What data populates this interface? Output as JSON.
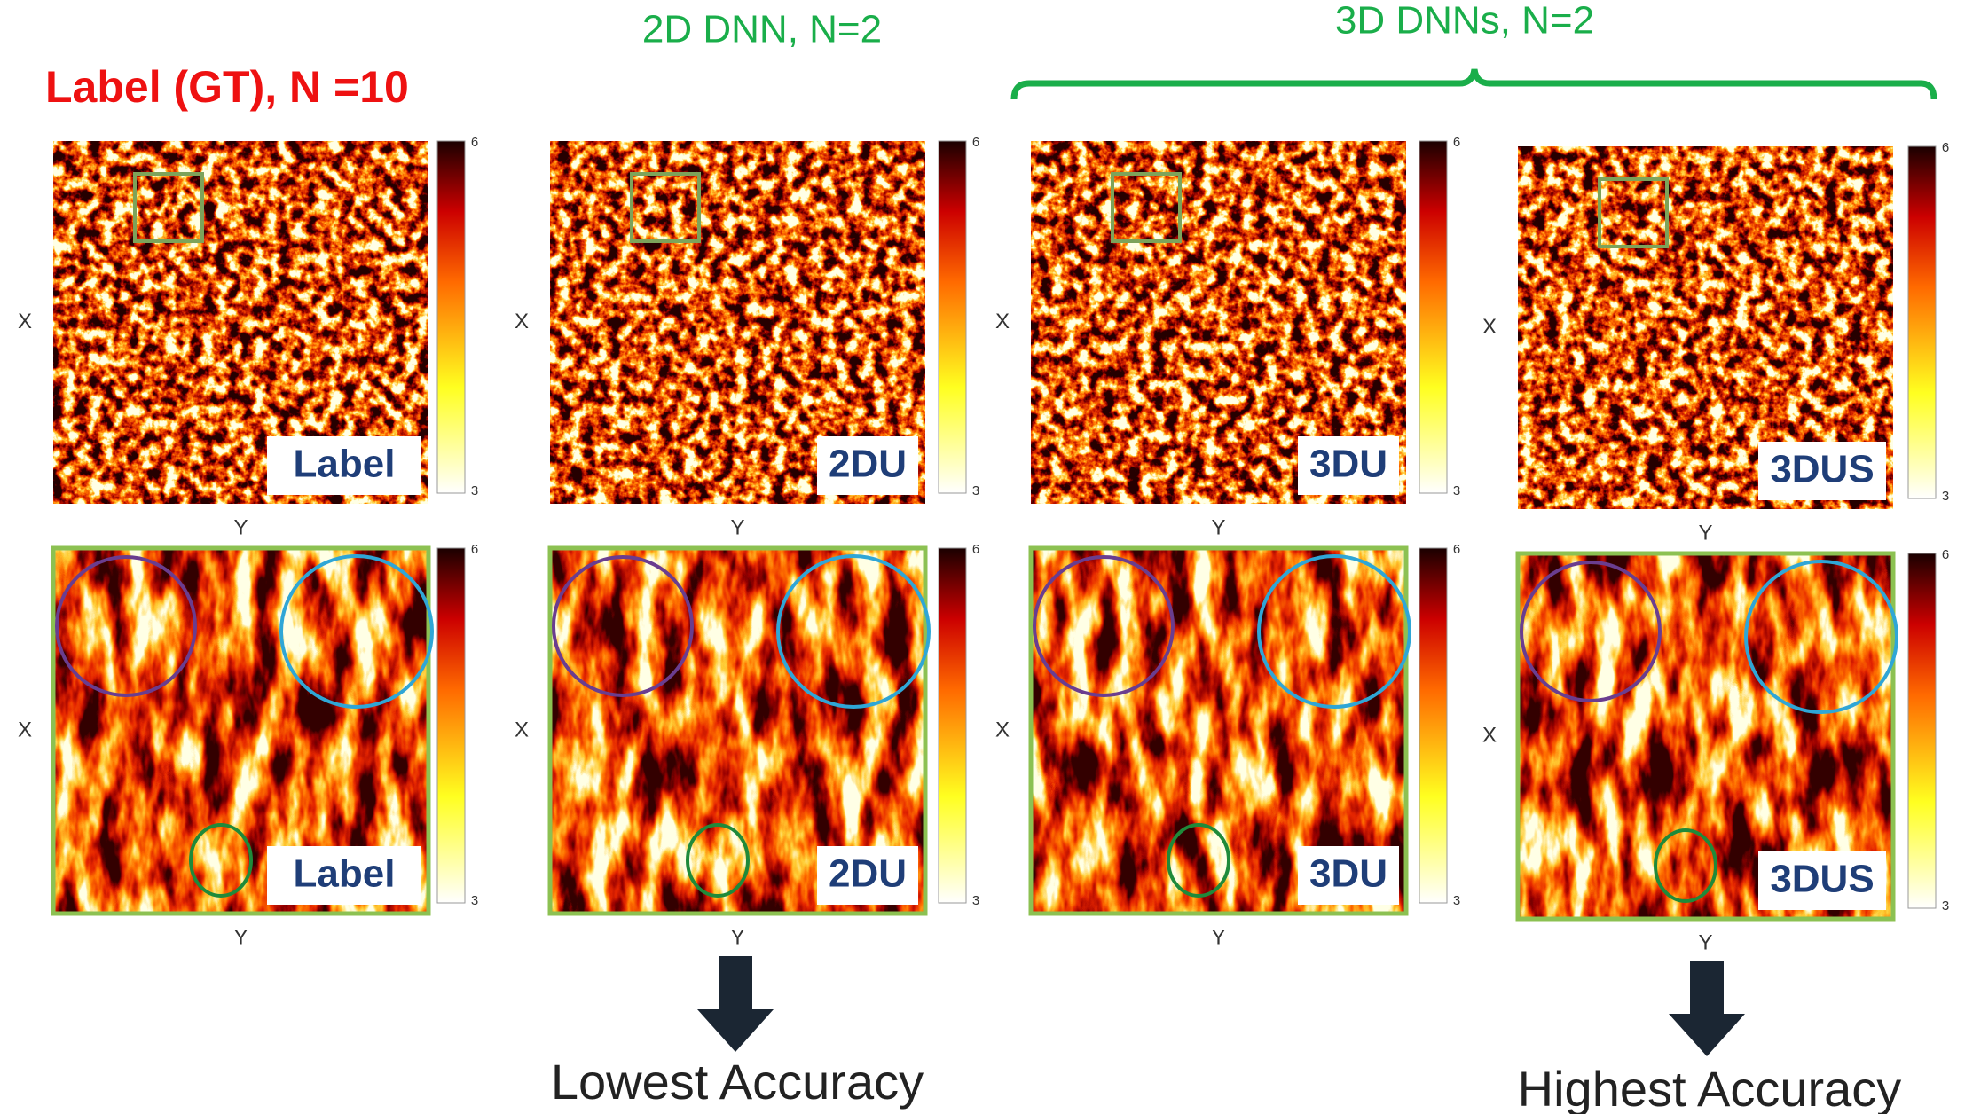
{
  "titles": {
    "label_gt": "Label (GT), N =10",
    "dnn2d": "2D DNN, N=2",
    "dnn3d": "3D DNNs, N=2"
  },
  "axes": {
    "x": "X",
    "y": "Y"
  },
  "colorbar": {
    "max": 6,
    "min": 3
  },
  "panels": [
    {
      "tag": "Label"
    },
    {
      "tag": "2DU"
    },
    {
      "tag": "3DU"
    },
    {
      "tag": "3DUS"
    }
  ],
  "notes": {
    "lowest": "Lowest Accuracy",
    "highest": "Highest Accuracy"
  }
}
